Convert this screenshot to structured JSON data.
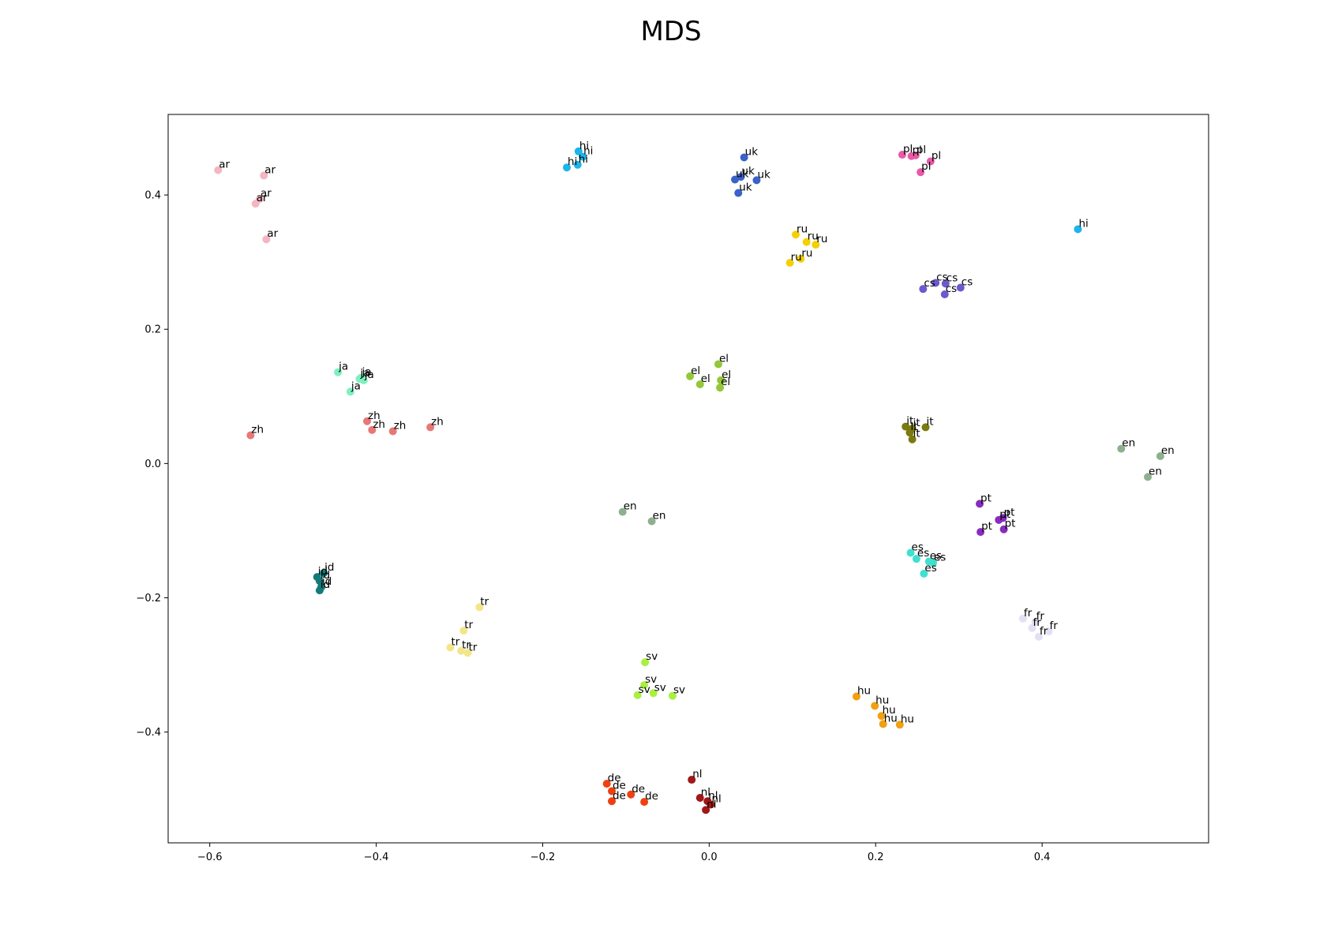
{
  "chart_data": {
    "type": "scatter",
    "title": "MDS",
    "xlabel": "",
    "ylabel": "",
    "xlim": [
      -0.65,
      0.6
    ],
    "ylim": [
      -0.565,
      0.52
    ],
    "xticks": [
      -0.6,
      -0.4,
      -0.2,
      0.0,
      0.2,
      0.4
    ],
    "yticks": [
      -0.4,
      -0.2,
      0.0,
      0.2,
      0.4
    ],
    "xtick_labels": [
      "−0.6",
      "−0.4",
      "−0.2",
      "0.0",
      "0.2",
      "0.4"
    ],
    "ytick_labels": [
      "−0.4",
      "−0.2",
      "0.0",
      "0.2",
      "0.4"
    ],
    "grid": false,
    "legend": false,
    "colors": {
      "ar": "#f4b6c2",
      "zh": "#e87878",
      "ja": "#7ef0c0",
      "id": "#137a7a",
      "tr": "#f3e68a",
      "hi": "#1bb5ea",
      "uk": "#3a62c8",
      "ru": "#f5d000",
      "pl": "#e85aa8",
      "cs": "#6a5acd",
      "el": "#93c838",
      "it": "#7a7a10",
      "en": "#8fb08f",
      "pt": "#8a2bbf",
      "es": "#40e0d0",
      "fr": "#e2e0f4",
      "sv": "#aaf040",
      "hu": "#f0a010",
      "de": "#f04010",
      "nl": "#a01818"
    },
    "points": [
      {
        "label": "ar",
        "x": -0.59,
        "y": 0.437
      },
      {
        "label": "ar",
        "x": -0.535,
        "y": 0.429
      },
      {
        "label": "ar",
        "x": -0.54,
        "y": 0.394
      },
      {
        "label": "ar",
        "x": -0.545,
        "y": 0.387
      },
      {
        "label": "ar",
        "x": -0.532,
        "y": 0.334
      },
      {
        "label": "zh",
        "x": -0.551,
        "y": 0.042
      },
      {
        "label": "zh",
        "x": -0.411,
        "y": 0.063
      },
      {
        "label": "zh",
        "x": -0.405,
        "y": 0.05
      },
      {
        "label": "zh",
        "x": -0.38,
        "y": 0.048
      },
      {
        "label": "zh",
        "x": -0.335,
        "y": 0.054
      },
      {
        "label": "ja",
        "x": -0.446,
        "y": 0.136
      },
      {
        "label": "ja",
        "x": -0.418,
        "y": 0.128
      },
      {
        "label": "ja",
        "x": -0.42,
        "y": 0.126
      },
      {
        "label": "ja",
        "x": -0.415,
        "y": 0.124
      },
      {
        "label": "ja",
        "x": -0.431,
        "y": 0.107
      },
      {
        "label": "id",
        "x": -0.471,
        "y": -0.169
      },
      {
        "label": "id",
        "x": -0.463,
        "y": -0.163
      },
      {
        "label": "id",
        "x": -0.468,
        "y": -0.175
      },
      {
        "label": "id",
        "x": -0.466,
        "y": -0.184
      },
      {
        "label": "id",
        "x": -0.468,
        "y": -0.189
      },
      {
        "label": "tr",
        "x": -0.276,
        "y": -0.214
      },
      {
        "label": "tr",
        "x": -0.295,
        "y": -0.249
      },
      {
        "label": "tr",
        "x": -0.311,
        "y": -0.274
      },
      {
        "label": "tr",
        "x": -0.298,
        "y": -0.279
      },
      {
        "label": "tr",
        "x": -0.29,
        "y": -0.282
      },
      {
        "label": "hi",
        "x": -0.157,
        "y": 0.465
      },
      {
        "label": "hi",
        "x": -0.152,
        "y": 0.457
      },
      {
        "label": "hi",
        "x": -0.158,
        "y": 0.445
      },
      {
        "label": "hi",
        "x": -0.171,
        "y": 0.441
      },
      {
        "label": "hi",
        "x": 0.443,
        "y": 0.349
      },
      {
        "label": "uk",
        "x": 0.042,
        "y": 0.456
      },
      {
        "label": "uk",
        "x": 0.031,
        "y": 0.423
      },
      {
        "label": "uk",
        "x": 0.038,
        "y": 0.427
      },
      {
        "label": "uk",
        "x": 0.057,
        "y": 0.422
      },
      {
        "label": "uk",
        "x": 0.035,
        "y": 0.403
      },
      {
        "label": "ru",
        "x": 0.104,
        "y": 0.341
      },
      {
        "label": "ru",
        "x": 0.117,
        "y": 0.33
      },
      {
        "label": "ru",
        "x": 0.128,
        "y": 0.326
      },
      {
        "label": "ru",
        "x": 0.11,
        "y": 0.305
      },
      {
        "label": "ru",
        "x": 0.097,
        "y": 0.299
      },
      {
        "label": "pl",
        "x": 0.232,
        "y": 0.46
      },
      {
        "label": "pl",
        "x": 0.243,
        "y": 0.458
      },
      {
        "label": "pl",
        "x": 0.266,
        "y": 0.45
      },
      {
        "label": "pl",
        "x": 0.254,
        "y": 0.434
      },
      {
        "label": "pl",
        "x": 0.248,
        "y": 0.459
      },
      {
        "label": "cs",
        "x": 0.257,
        "y": 0.26
      },
      {
        "label": "cs",
        "x": 0.272,
        "y": 0.269
      },
      {
        "label": "cs",
        "x": 0.284,
        "y": 0.268
      },
      {
        "label": "cs",
        "x": 0.302,
        "y": 0.262
      },
      {
        "label": "cs",
        "x": 0.283,
        "y": 0.252
      },
      {
        "label": "el",
        "x": -0.023,
        "y": 0.13
      },
      {
        "label": "el",
        "x": 0.011,
        "y": 0.148
      },
      {
        "label": "el",
        "x": 0.014,
        "y": 0.124
      },
      {
        "label": "el",
        "x": -0.011,
        "y": 0.118
      },
      {
        "label": "el",
        "x": 0.013,
        "y": 0.113
      },
      {
        "label": "it",
        "x": 0.236,
        "y": 0.055
      },
      {
        "label": "it",
        "x": 0.244,
        "y": 0.052
      },
      {
        "label": "it",
        "x": 0.241,
        "y": 0.046
      },
      {
        "label": "it",
        "x": 0.26,
        "y": 0.054
      },
      {
        "label": "it",
        "x": 0.244,
        "y": 0.036
      },
      {
        "label": "en",
        "x": 0.495,
        "y": 0.022
      },
      {
        "label": "en",
        "x": 0.542,
        "y": 0.011
      },
      {
        "label": "en",
        "x": 0.527,
        "y": -0.02
      },
      {
        "label": "en",
        "x": -0.104,
        "y": -0.072
      },
      {
        "label": "en",
        "x": -0.069,
        "y": -0.086
      },
      {
        "label": "pt",
        "x": 0.325,
        "y": -0.06
      },
      {
        "label": "pt",
        "x": 0.348,
        "y": -0.084
      },
      {
        "label": "pt",
        "x": 0.353,
        "y": -0.081
      },
      {
        "label": "pt",
        "x": 0.354,
        "y": -0.098
      },
      {
        "label": "pt",
        "x": 0.326,
        "y": -0.102
      },
      {
        "label": "es",
        "x": 0.242,
        "y": -0.133
      },
      {
        "label": "es",
        "x": 0.249,
        "y": -0.142
      },
      {
        "label": "es",
        "x": 0.264,
        "y": -0.146
      },
      {
        "label": "es",
        "x": 0.269,
        "y": -0.148
      },
      {
        "label": "es",
        "x": 0.258,
        "y": -0.164
      },
      {
        "label": "fr",
        "x": 0.377,
        "y": -0.231
      },
      {
        "label": "fr",
        "x": 0.392,
        "y": -0.236
      },
      {
        "label": "fr",
        "x": 0.388,
        "y": -0.245
      },
      {
        "label": "fr",
        "x": 0.408,
        "y": -0.25
      },
      {
        "label": "fr",
        "x": 0.396,
        "y": -0.258
      },
      {
        "label": "sv",
        "x": -0.077,
        "y": -0.296
      },
      {
        "label": "sv",
        "x": -0.078,
        "y": -0.33
      },
      {
        "label": "sv",
        "x": -0.086,
        "y": -0.345
      },
      {
        "label": "sv",
        "x": -0.067,
        "y": -0.342
      },
      {
        "label": "sv",
        "x": -0.044,
        "y": -0.346
      },
      {
        "label": "hu",
        "x": 0.177,
        "y": -0.347
      },
      {
        "label": "hu",
        "x": 0.199,
        "y": -0.361
      },
      {
        "label": "hu",
        "x": 0.207,
        "y": -0.376
      },
      {
        "label": "hu",
        "x": 0.209,
        "y": -0.388
      },
      {
        "label": "hu",
        "x": 0.229,
        "y": -0.389
      },
      {
        "label": "de",
        "x": -0.123,
        "y": -0.477
      },
      {
        "label": "de",
        "x": -0.117,
        "y": -0.488
      },
      {
        "label": "de",
        "x": -0.094,
        "y": -0.493
      },
      {
        "label": "de",
        "x": -0.117,
        "y": -0.503
      },
      {
        "label": "de",
        "x": -0.078,
        "y": -0.504
      },
      {
        "label": "nl",
        "x": -0.021,
        "y": -0.471
      },
      {
        "label": "nl",
        "x": -0.011,
        "y": -0.498
      },
      {
        "label": "nl",
        "x": -0.002,
        "y": -0.503
      },
      {
        "label": "nl",
        "x": 0.002,
        "y": -0.508
      },
      {
        "label": "nl",
        "x": -0.004,
        "y": -0.516
      }
    ]
  }
}
